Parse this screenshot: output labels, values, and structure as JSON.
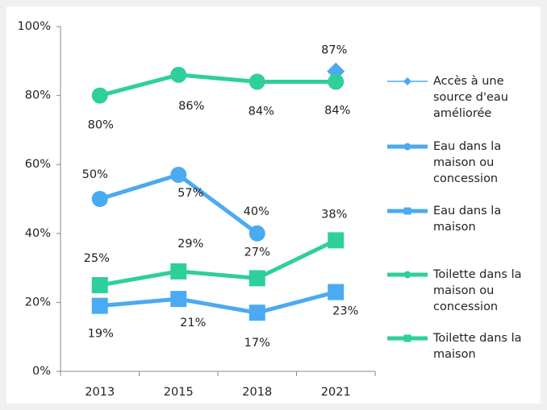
{
  "chart_data": {
    "type": "line",
    "categories": [
      "2013",
      "2015",
      "2018",
      "2021"
    ],
    "ylim": [
      0,
      100
    ],
    "yticks": [
      {
        "value": 0,
        "label": "0%"
      },
      {
        "value": 20,
        "label": "20%"
      },
      {
        "value": 40,
        "label": "40%"
      },
      {
        "value": 60,
        "label": "60%"
      },
      {
        "value": 80,
        "label": "80%"
      },
      {
        "value": 100,
        "label": "100%"
      }
    ],
    "legend": "right",
    "series": [
      {
        "name": "Accès à une source d'eau améliorée",
        "color": "#4aaaf2",
        "marker": "diamond",
        "values": [
          null,
          null,
          null,
          87
        ],
        "value_labels": [
          null,
          null,
          null,
          "87%"
        ]
      },
      {
        "name": "Eau dans la maison ou concession",
        "color": "#4aaaf2",
        "marker": "circle",
        "values": [
          50,
          57,
          40,
          null
        ],
        "value_labels": [
          "50%",
          "57%",
          "40%",
          null
        ]
      },
      {
        "name": "Eau dans la maison",
        "color": "#4aaaf2",
        "marker": "square",
        "values": [
          19,
          21,
          17,
          23
        ],
        "value_labels": [
          "19%",
          "21%",
          "17%",
          "23%"
        ]
      },
      {
        "name": "Toilette dans la maison ou concession",
        "color": "#2ecf9c",
        "marker": "circle",
        "values": [
          80,
          86,
          84,
          84
        ],
        "value_labels": [
          "80%",
          "86%",
          "84%",
          "84%"
        ]
      },
      {
        "name": "Toilette dans la maison",
        "color": "#2ecf9c",
        "marker": "square",
        "values": [
          25,
          29,
          27,
          38
        ],
        "value_labels": [
          "25%",
          "29%",
          "27%",
          "38%"
        ]
      }
    ]
  }
}
